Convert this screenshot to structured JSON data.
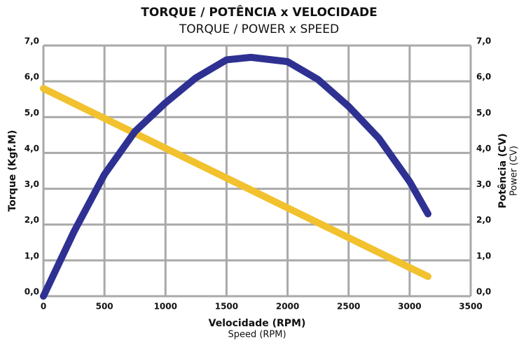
{
  "chart_data": {
    "type": "line",
    "title": "TORQUE / POTÊNCIA x VELOCIDADE",
    "subtitle": "TORQUE / POWER x SPEED",
    "x_label": "Velocidade (RPM)",
    "x_sublabel": "Speed (RPM)",
    "y_label": "Torque (Kgf.M)",
    "y2_label": "Potência (CV)",
    "y2_sublabel": "Power (CV)",
    "xlim": [
      0,
      3500
    ],
    "xticks": [
      0,
      500,
      1000,
      1500,
      2000,
      2500,
      3000,
      3500
    ],
    "ylim": [
      0,
      7
    ],
    "yticks": [
      {
        "value": 0,
        "label": "0,0"
      },
      {
        "value": 1,
        "label": "1,0"
      },
      {
        "value": 2,
        "label": "2,0"
      },
      {
        "value": 3,
        "label": "3,0"
      },
      {
        "value": 4,
        "label": "4,0"
      },
      {
        "value": 5,
        "label": "5,0"
      },
      {
        "value": 6,
        "label": "6,0"
      },
      {
        "value": 7,
        "label": "7,0"
      }
    ],
    "y2lim": [
      0,
      7
    ],
    "y2ticks": [
      {
        "value": 0,
        "label": "0,0"
      },
      {
        "value": 1,
        "label": "1,0"
      },
      {
        "value": 2,
        "label": "2,0"
      },
      {
        "value": 3,
        "label": "3,0"
      },
      {
        "value": 4,
        "label": "4,0"
      },
      {
        "value": 5,
        "label": "5,0"
      },
      {
        "value": 6,
        "label": "6,0"
      },
      {
        "value": 7,
        "label": "7,0"
      }
    ],
    "grid": true,
    "series": [
      {
        "color": "#f2c12e",
        "x": [
          0,
          3150
        ],
        "values": [
          5.8,
          0.55
        ]
      },
      {
        "color": "#2e3192",
        "axis": "y2",
        "x": [
          0,
          250,
          500,
          750,
          1000,
          1250,
          1500,
          1700,
          2000,
          2250,
          2500,
          2750,
          3000,
          3150
        ],
        "values": [
          0,
          1.8,
          3.4,
          4.6,
          5.4,
          6.1,
          6.6,
          6.67,
          6.55,
          6.05,
          5.3,
          4.4,
          3.2,
          2.3
        ]
      }
    ]
  }
}
